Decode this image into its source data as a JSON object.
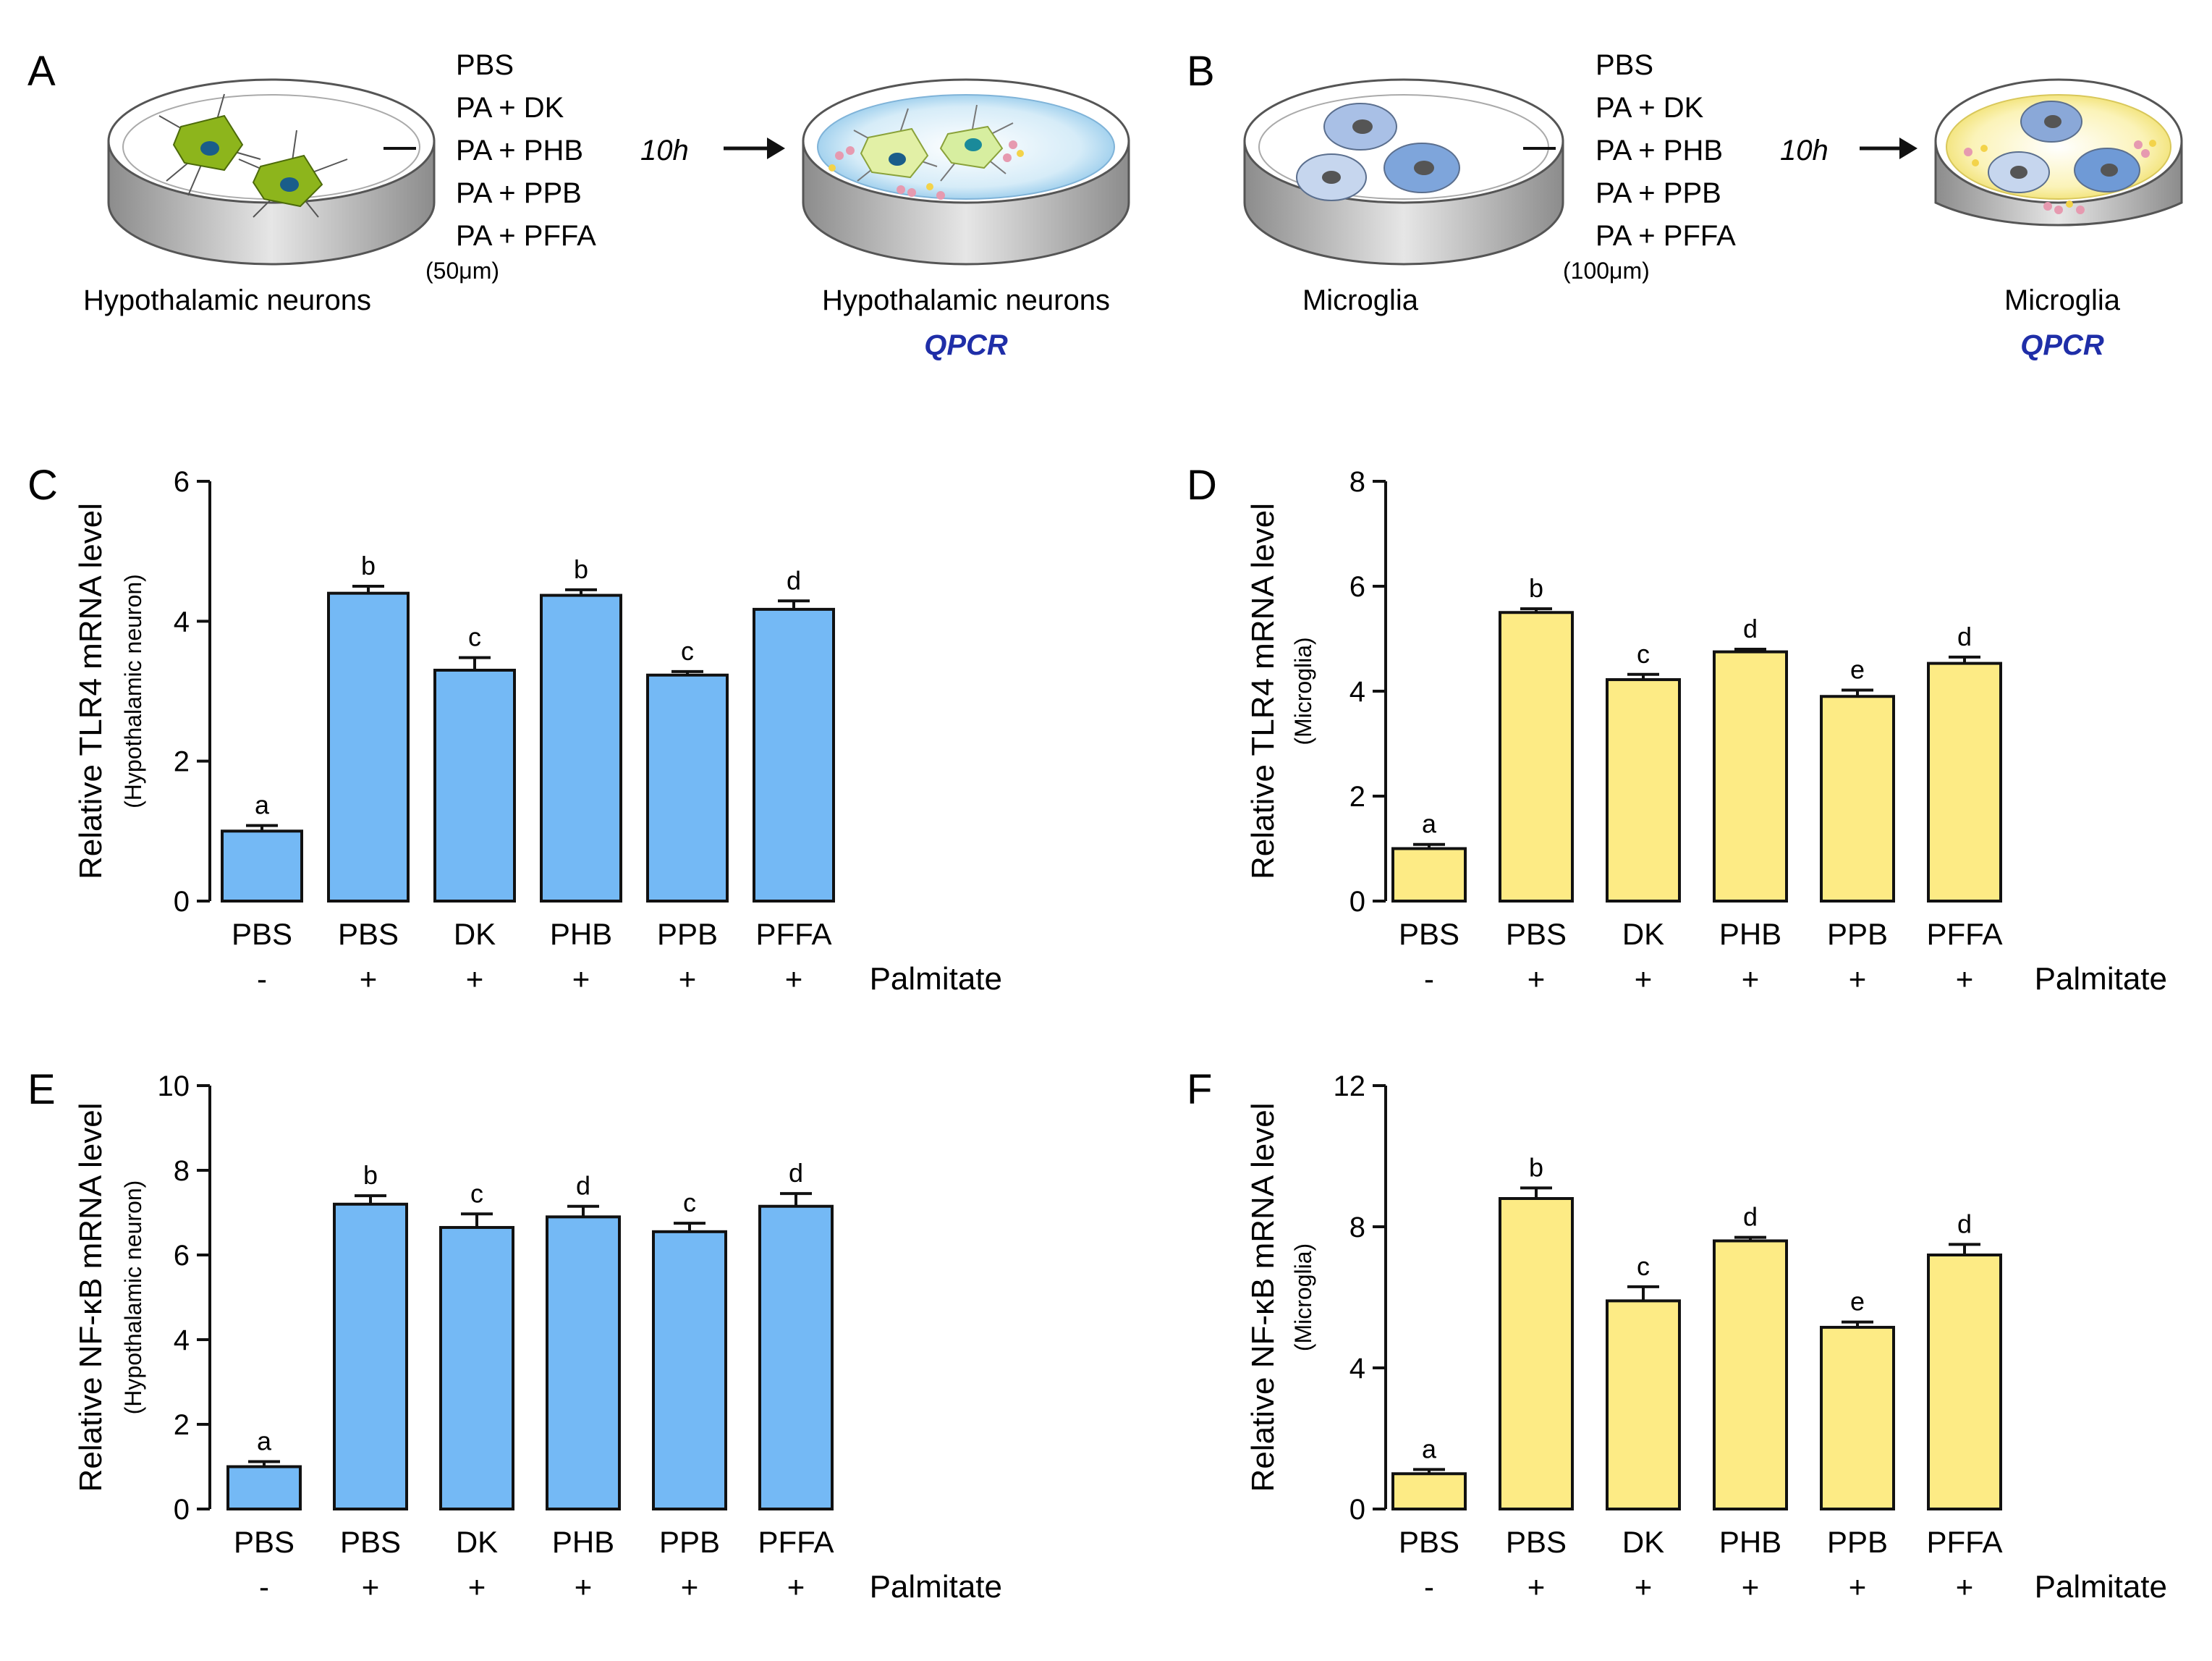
{
  "schematics": [
    {
      "panel": "A",
      "treatments": [
        "PBS",
        "PA + DK",
        "PA + PHB",
        "PA + PPB",
        "PA + PFFA"
      ],
      "dose": "(50μm)",
      "time": "10h",
      "left_label": "Hypothalamic neurons",
      "right_label": "Hypothalamic neurons",
      "assay": "QPCR"
    },
    {
      "panel": "B",
      "treatments": [
        "PBS",
        "PA + DK",
        "PA + PHB",
        "PA + PPB",
        "PA + PFFA"
      ],
      "dose": "(100μm)",
      "time": "10h",
      "left_label": "Microglia",
      "right_label": "Microglia",
      "assay": "QPCR"
    }
  ],
  "colors": {
    "blue_bar": "#74b9f5",
    "yellow_bar": "#fdeb85",
    "neuron": "#8db51c",
    "microglia": "#a9c0e6",
    "assay_text": "#1f2ea8"
  },
  "chart_data": [
    {
      "panel": "C",
      "type": "bar",
      "ylabel": "Relative TLR4 mRNA level",
      "ylabel_sub": "(Hypothalamic neuron)",
      "ylim": [
        0,
        6
      ],
      "yticks": [
        0,
        2,
        4,
        6
      ],
      "categories": [
        "PBS",
        "PBS",
        "DK",
        "PHB",
        "PPB",
        "PFFA"
      ],
      "palmitate": [
        "-",
        "+",
        "+",
        "+",
        "+",
        "+"
      ],
      "palmitate_label": "Palmitate",
      "values": [
        1.0,
        4.4,
        3.3,
        4.37,
        3.23,
        4.17
      ],
      "errors": [
        0.08,
        0.1,
        0.18,
        0.08,
        0.05,
        0.12
      ],
      "sig_letters": [
        "a",
        "b",
        "c",
        "b",
        "c",
        "d"
      ],
      "color": "#74b9f5"
    },
    {
      "panel": "D",
      "type": "bar",
      "ylabel": "Relative TLR4 mRNA level",
      "ylabel_sub": "(Microglia)",
      "ylim": [
        0,
        8
      ],
      "yticks": [
        0,
        2,
        4,
        6,
        8
      ],
      "categories": [
        "PBS",
        "PBS",
        "DK",
        "PHB",
        "PPB",
        "PFFA"
      ],
      "palmitate": [
        "-",
        "+",
        "+",
        "+",
        "+",
        "+"
      ],
      "palmitate_label": "Palmitate",
      "values": [
        1.0,
        5.5,
        4.22,
        4.75,
        3.9,
        4.53
      ],
      "errors": [
        0.08,
        0.07,
        0.1,
        0.05,
        0.12,
        0.12
      ],
      "sig_letters": [
        "a",
        "b",
        "c",
        "d",
        "e",
        "d"
      ],
      "color": "#fdeb85"
    },
    {
      "panel": "E",
      "type": "bar",
      "ylabel": "Relative NF-κB mRNA level",
      "ylabel_sub": "(Hypothalamic neuron)",
      "ylim": [
        0,
        10
      ],
      "yticks": [
        0,
        2,
        4,
        6,
        8,
        10
      ],
      "categories": [
        "PBS",
        "PBS",
        "DK",
        "PHB",
        "PPB",
        "PFFA"
      ],
      "palmitate": [
        "-",
        "+",
        "+",
        "+",
        "+",
        "+"
      ],
      "palmitate_label": "Palmitate",
      "values": [
        1.0,
        7.2,
        6.65,
        6.9,
        6.55,
        7.15
      ],
      "errors": [
        0.12,
        0.2,
        0.32,
        0.25,
        0.2,
        0.3
      ],
      "sig_letters": [
        "a",
        "b",
        "c",
        "d",
        "c",
        "d"
      ],
      "color": "#74b9f5"
    },
    {
      "panel": "F",
      "type": "bar",
      "ylabel": "Relative NF-κB mRNA level",
      "ylabel_sub": "(Microglia)",
      "ylim": [
        0,
        12
      ],
      "yticks": [
        0,
        4,
        8,
        12
      ],
      "categories": [
        "PBS",
        "PBS",
        "DK",
        "PHB",
        "PPB",
        "PFFA"
      ],
      "palmitate": [
        "-",
        "+",
        "+",
        "+",
        "+",
        "+"
      ],
      "palmitate_label": "Palmitate",
      "values": [
        1.0,
        8.8,
        5.9,
        7.6,
        5.15,
        7.2
      ],
      "errors": [
        0.12,
        0.3,
        0.4,
        0.1,
        0.15,
        0.3
      ],
      "sig_letters": [
        "a",
        "b",
        "c",
        "d",
        "e",
        "d"
      ],
      "color": "#fdeb85"
    }
  ]
}
